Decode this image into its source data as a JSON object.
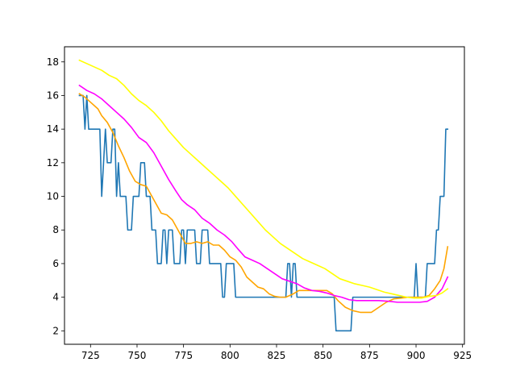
{
  "chart_data": {
    "type": "line",
    "title": "",
    "xlabel": "",
    "ylabel": "",
    "xlim": [
      711,
      926
    ],
    "ylim": [
      1.2,
      18.9
    ],
    "xticks": [
      725,
      750,
      775,
      800,
      825,
      850,
      875,
      900,
      925
    ],
    "yticks": [
      2,
      4,
      6,
      8,
      10,
      12,
      14,
      16,
      18
    ],
    "grid": false,
    "legend": "none",
    "series": [
      {
        "color": "#1f77b4",
        "points": [
          [
            719,
            16
          ],
          [
            720,
            16
          ],
          [
            721,
            16
          ],
          [
            722,
            14
          ],
          [
            723,
            16
          ],
          [
            724,
            14
          ],
          [
            725,
            14
          ],
          [
            727,
            14
          ],
          [
            729,
            14
          ],
          [
            730,
            14
          ],
          [
            731,
            10
          ],
          [
            732,
            12
          ],
          [
            733,
            14
          ],
          [
            734,
            12
          ],
          [
            735,
            12
          ],
          [
            736,
            12
          ],
          [
            737,
            14
          ],
          [
            738,
            14
          ],
          [
            739,
            10
          ],
          [
            740,
            12
          ],
          [
            741,
            10
          ],
          [
            742,
            10
          ],
          [
            744,
            10
          ],
          [
            745,
            8
          ],
          [
            747,
            8
          ],
          [
            748,
            10
          ],
          [
            750,
            10
          ],
          [
            751,
            10
          ],
          [
            752,
            12
          ],
          [
            754,
            12
          ],
          [
            755,
            10
          ],
          [
            757,
            10
          ],
          [
            758,
            8
          ],
          [
            760,
            8
          ],
          [
            761,
            6
          ],
          [
            763,
            6
          ],
          [
            764,
            8
          ],
          [
            765,
            8
          ],
          [
            766,
            6
          ],
          [
            767,
            8
          ],
          [
            769,
            8
          ],
          [
            770,
            6
          ],
          [
            773,
            6
          ],
          [
            774,
            8
          ],
          [
            775,
            8
          ],
          [
            776,
            6
          ],
          [
            777,
            8
          ],
          [
            781,
            8
          ],
          [
            782,
            6
          ],
          [
            784,
            6
          ],
          [
            785,
            8
          ],
          [
            788,
            8
          ],
          [
            789,
            6
          ],
          [
            795,
            6
          ],
          [
            796,
            4
          ],
          [
            797,
            4
          ],
          [
            798,
            6
          ],
          [
            802,
            6
          ],
          [
            803,
            4
          ],
          [
            830,
            4
          ],
          [
            831,
            6
          ],
          [
            832,
            6
          ],
          [
            833,
            4
          ],
          [
            834,
            6
          ],
          [
            835,
            6
          ],
          [
            836,
            4
          ],
          [
            856,
            4
          ],
          [
            857,
            2
          ],
          [
            865,
            2
          ],
          [
            866,
            4
          ],
          [
            899,
            4
          ],
          [
            900,
            6
          ],
          [
            901,
            4
          ],
          [
            905,
            4
          ],
          [
            906,
            6
          ],
          [
            910,
            6
          ],
          [
            911,
            8
          ],
          [
            912,
            8
          ],
          [
            913,
            10
          ],
          [
            915,
            10
          ],
          [
            916,
            14
          ],
          [
            917,
            14
          ]
        ]
      },
      {
        "color": "#ffa500",
        "points": [
          [
            719,
            16.1
          ],
          [
            722,
            15.9
          ],
          [
            725,
            15.6
          ],
          [
            729,
            15.2
          ],
          [
            731,
            14.8
          ],
          [
            734,
            14.4
          ],
          [
            737,
            13.8
          ],
          [
            740,
            13.0
          ],
          [
            743,
            12.3
          ],
          [
            746,
            11.5
          ],
          [
            749,
            10.9
          ],
          [
            752,
            10.7
          ],
          [
            755,
            10.6
          ],
          [
            757,
            10.2
          ],
          [
            760,
            9.6
          ],
          [
            763,
            9.0
          ],
          [
            766,
            8.9
          ],
          [
            769,
            8.6
          ],
          [
            772,
            8.0
          ],
          [
            774,
            7.6
          ],
          [
            776,
            7.2
          ],
          [
            779,
            7.2
          ],
          [
            782,
            7.3
          ],
          [
            785,
            7.2
          ],
          [
            788,
            7.3
          ],
          [
            791,
            7.1
          ],
          [
            794,
            7.1
          ],
          [
            797,
            6.8
          ],
          [
            800,
            6.4
          ],
          [
            803,
            6.2
          ],
          [
            806,
            5.8
          ],
          [
            809,
            5.2
          ],
          [
            812,
            4.9
          ],
          [
            815,
            4.6
          ],
          [
            818,
            4.5
          ],
          [
            821,
            4.2
          ],
          [
            824,
            4.05
          ],
          [
            827,
            4.0
          ],
          [
            830,
            4.0
          ],
          [
            834,
            4.2
          ],
          [
            837,
            4.4
          ],
          [
            842,
            4.4
          ],
          [
            848,
            4.4
          ],
          [
            852,
            4.4
          ],
          [
            855,
            4.2
          ],
          [
            858,
            3.8
          ],
          [
            862,
            3.4
          ],
          [
            866,
            3.2
          ],
          [
            870,
            3.1
          ],
          [
            876,
            3.1
          ],
          [
            880,
            3.4
          ],
          [
            884,
            3.7
          ],
          [
            888,
            3.9
          ],
          [
            892,
            3.95
          ],
          [
            896,
            4.0
          ],
          [
            900,
            4.0
          ],
          [
            904,
            4.0
          ],
          [
            907,
            4.1
          ],
          [
            910,
            4.5
          ],
          [
            913,
            5.0
          ],
          [
            915,
            5.7
          ],
          [
            917,
            7.0
          ]
        ]
      },
      {
        "color": "#ff00ff",
        "points": [
          [
            719,
            16.6
          ],
          [
            723,
            16.3
          ],
          [
            727,
            16.1
          ],
          [
            731,
            15.8
          ],
          [
            735,
            15.4
          ],
          [
            739,
            15.0
          ],
          [
            743,
            14.6
          ],
          [
            747,
            14.1
          ],
          [
            751,
            13.5
          ],
          [
            755,
            13.2
          ],
          [
            759,
            12.6
          ],
          [
            763,
            11.8
          ],
          [
            767,
            11.0
          ],
          [
            771,
            10.3
          ],
          [
            774,
            9.8
          ],
          [
            777,
            9.5
          ],
          [
            781,
            9.2
          ],
          [
            785,
            8.7
          ],
          [
            789,
            8.4
          ],
          [
            793,
            8.0
          ],
          [
            797,
            7.7
          ],
          [
            801,
            7.3
          ],
          [
            804,
            6.9
          ],
          [
            808,
            6.4
          ],
          [
            812,
            6.2
          ],
          [
            816,
            6.0
          ],
          [
            820,
            5.7
          ],
          [
            824,
            5.4
          ],
          [
            828,
            5.1
          ],
          [
            832,
            4.95
          ],
          [
            836,
            4.8
          ],
          [
            840,
            4.55
          ],
          [
            844,
            4.4
          ],
          [
            848,
            4.35
          ],
          [
            852,
            4.25
          ],
          [
            856,
            4.1
          ],
          [
            860,
            4.0
          ],
          [
            864,
            3.85
          ],
          [
            868,
            3.8
          ],
          [
            874,
            3.8
          ],
          [
            880,
            3.8
          ],
          [
            886,
            3.75
          ],
          [
            890,
            3.7
          ],
          [
            896,
            3.7
          ],
          [
            902,
            3.7
          ],
          [
            906,
            3.75
          ],
          [
            910,
            4.0
          ],
          [
            914,
            4.5
          ],
          [
            917,
            5.2
          ]
        ]
      },
      {
        "color": "#ffff00",
        "points": [
          [
            719,
            18.1
          ],
          [
            725,
            17.8
          ],
          [
            731,
            17.5
          ],
          [
            735,
            17.2
          ],
          [
            739,
            17.0
          ],
          [
            743,
            16.6
          ],
          [
            747,
            16.1
          ],
          [
            751,
            15.7
          ],
          [
            755,
            15.4
          ],
          [
            759,
            15.0
          ],
          [
            763,
            14.5
          ],
          [
            767,
            13.9
          ],
          [
            771,
            13.4
          ],
          [
            775,
            12.9
          ],
          [
            779,
            12.5
          ],
          [
            783,
            12.1
          ],
          [
            787,
            11.7
          ],
          [
            791,
            11.3
          ],
          [
            795,
            10.9
          ],
          [
            799,
            10.5
          ],
          [
            803,
            10.0
          ],
          [
            807,
            9.5
          ],
          [
            811,
            9.0
          ],
          [
            815,
            8.5
          ],
          [
            819,
            8.0
          ],
          [
            823,
            7.6
          ],
          [
            827,
            7.2
          ],
          [
            831,
            6.9
          ],
          [
            835,
            6.6
          ],
          [
            839,
            6.3
          ],
          [
            843,
            6.1
          ],
          [
            847,
            5.9
          ],
          [
            851,
            5.7
          ],
          [
            855,
            5.4
          ],
          [
            859,
            5.1
          ],
          [
            863,
            4.95
          ],
          [
            867,
            4.8
          ],
          [
            871,
            4.7
          ],
          [
            875,
            4.6
          ],
          [
            879,
            4.45
          ],
          [
            883,
            4.3
          ],
          [
            887,
            4.2
          ],
          [
            891,
            4.1
          ],
          [
            895,
            4.0
          ],
          [
            899,
            3.95
          ],
          [
            903,
            3.95
          ],
          [
            907,
            4.05
          ],
          [
            911,
            4.1
          ],
          [
            914,
            4.25
          ],
          [
            917,
            4.5
          ]
        ]
      }
    ]
  }
}
